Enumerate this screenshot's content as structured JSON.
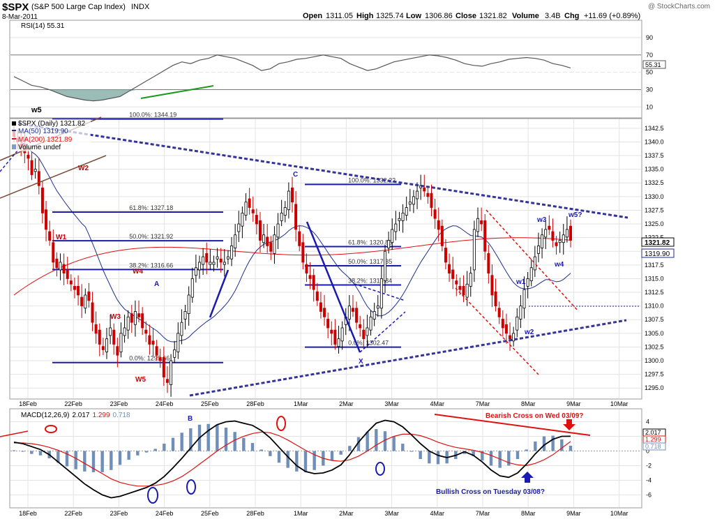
{
  "header": {
    "symbol": "$SPX",
    "name": "(S&P 500 Large Cap Index)",
    "exchange": "INDX",
    "date": "8-Mar-2011",
    "watermark": "@ StockCharts.com",
    "open_label": "Open",
    "open": "1311.05",
    "high_label": "High",
    "high": "1325.74",
    "low_label": "Low",
    "low": "1306.86",
    "close_label": "Close",
    "close": "1321.82",
    "volume_label": "Volume",
    "volume": "3.4B",
    "chg_label": "Chg",
    "chg": "+11.69 (+0.89%)"
  },
  "colors": {
    "price": "#000000",
    "up": "#000000",
    "down": "#cc0000",
    "ma50": "#1c2f8a",
    "ma200": "#e01010",
    "volume": "#7f9fc9",
    "wave_blue": "#1a1ab0",
    "wave_red": "#cc0000",
    "trendline": "#333399",
    "rsi": "#555555",
    "rsi_fill": "#7aa7a0",
    "macd": "#000000",
    "signal": "#e01010",
    "hist": "#6f8fb9",
    "grid": "#e3e3e3"
  },
  "chart_data": {
    "type": "candlestick",
    "x_labels": [
      "18Feb",
      "22Feb",
      "23Feb",
      "24Feb",
      "25Feb",
      "28Feb",
      "1Mar",
      "2Mar",
      "3Mar",
      "4Mar",
      "7Mar",
      "8Mar",
      "9Mar",
      "10Mar"
    ],
    "price_axis": {
      "ylim": [
        1293.5,
        1343.5
      ],
      "ticks": [
        "1342.5",
        "1340.0",
        "1337.5",
        "1335.0",
        "1332.5",
        "1330.0",
        "1327.5",
        "1325.0",
        "1322.5",
        "1320.0",
        "1317.5",
        "1315.0",
        "1312.5",
        "1310.0",
        "1307.5",
        "1305.0",
        "1302.5",
        "1300.0",
        "1297.5",
        "1295.0"
      ],
      "last_price_tag": "1321.82",
      "ma50_tag": "1319.90"
    },
    "legend": {
      "price": "$SPX (Daily) 1321.82",
      "ma50": "MA(50) 1319.90",
      "ma200": "MA(200) 1321.89",
      "volume": "Volume undef"
    },
    "candles_close": [
      1341,
      1340,
      1339,
      1338,
      1337,
      1334,
      1335,
      1332,
      1327,
      1324,
      1322,
      1318,
      1317,
      1318,
      1316,
      1315,
      1314,
      1313,
      1312,
      1310,
      1312,
      1311,
      1307,
      1305,
      1303,
      1302,
      1304,
      1306,
      1303,
      1301,
      1305,
      1306,
      1308,
      1307,
      1309,
      1308,
      1306,
      1305,
      1303,
      1303,
      1301,
      1300,
      1297,
      1296,
      1300,
      1302,
      1305,
      1307,
      1309,
      1312,
      1315,
      1317,
      1318,
      1319,
      1318,
      1318,
      1318,
      1319,
      1318,
      1318,
      1319,
      1321,
      1323,
      1325,
      1327,
      1329,
      1328,
      1327,
      1325,
      1322,
      1323,
      1321,
      1320,
      1323,
      1325,
      1327,
      1328,
      1331,
      1329,
      1324,
      1321,
      1318,
      1316,
      1315,
      1313,
      1311,
      1309,
      1308,
      1306,
      1305,
      1303,
      1304,
      1306,
      1308,
      1310,
      1309,
      1307,
      1306,
      1304,
      1306,
      1308,
      1309,
      1310,
      1315,
      1320,
      1322,
      1324,
      1325,
      1326,
      1327,
      1328,
      1329,
      1330,
      1331,
      1332,
      1331,
      1330,
      1328,
      1326,
      1324,
      1321,
      1318,
      1316,
      1315,
      1314,
      1313,
      1312,
      1314,
      1316,
      1324,
      1326,
      1325,
      1320,
      1316,
      1312,
      1310,
      1308,
      1306,
      1305,
      1304,
      1305,
      1308,
      1310,
      1313,
      1315,
      1317,
      1319,
      1321,
      1323,
      1324,
      1324,
      1322,
      1321,
      1322,
      1323,
      1324,
      1322
    ],
    "fib_left": [
      {
        "label": "100.0%: 1344.19",
        "value": 1344.19
      },
      {
        "label": "61.8%: 1327.18",
        "value": 1327.18
      },
      {
        "label": "50.0%: 1321.92",
        "value": 1321.92
      },
      {
        "label": "38.2%: 1316.66",
        "value": 1316.66
      },
      {
        "label": "0.0%: 1299.66",
        "value": 1299.66
      }
    ],
    "fib_right": [
      {
        "label": "100.0%: 1332.22",
        "value": 1332.22
      },
      {
        "label": "61.8%: 1320.86",
        "value": 1320.86
      },
      {
        "label": "50.0%: 1317.35",
        "value": 1317.35
      },
      {
        "label": "38.2%: 1313.84",
        "value": 1313.84
      },
      {
        "label": "0.0%: 1302.47",
        "value": 1302.47
      }
    ],
    "wave_labels": [
      {
        "text": "w5",
        "color": "black"
      },
      {
        "text": "W2",
        "color": "red"
      },
      {
        "text": "W1",
        "color": "red"
      },
      {
        "text": "W4",
        "color": "red"
      },
      {
        "text": "W3",
        "color": "red"
      },
      {
        "text": "W5",
        "color": "red"
      },
      {
        "text": "A",
        "color": "blue"
      },
      {
        "text": "B",
        "color": "blue"
      },
      {
        "text": "C",
        "color": "blue"
      },
      {
        "text": "X",
        "color": "blue"
      },
      {
        "text": "w1",
        "color": "blue"
      },
      {
        "text": "w2",
        "color": "blue"
      },
      {
        "text": "w3",
        "color": "blue"
      },
      {
        "text": "w4",
        "color": "blue"
      },
      {
        "text": "w5?",
        "color": "blue"
      }
    ],
    "rsi": {
      "label": "RSI(14) 55.31",
      "ticks": [
        "90",
        "70",
        "50",
        "30",
        "10"
      ],
      "last": "55.31",
      "values": [
        45,
        40,
        35,
        33,
        30,
        26,
        22,
        20,
        18,
        17,
        18,
        20,
        22,
        28,
        34,
        40,
        46,
        52,
        58,
        62,
        60,
        64,
        66,
        70,
        68,
        66,
        62,
        58,
        52,
        54,
        60,
        62,
        65,
        66,
        68,
        70,
        68,
        66,
        60,
        56,
        52,
        54,
        58,
        62,
        64,
        66,
        68,
        70,
        69,
        67,
        64,
        60,
        58,
        57,
        60,
        62,
        65,
        66,
        67,
        66,
        64,
        60,
        58,
        55
      ]
    },
    "macd": {
      "label": "MACD(12,26,9)",
      "macd_value": "2.017",
      "signal_value": "1.299",
      "hist_value": "0.718",
      "ticks": [
        "4",
        "2",
        "0",
        "-2",
        "-4",
        "-6"
      ],
      "macd": [
        1.2,
        1.0,
        0.6,
        0.2,
        -0.5,
        -1.5,
        -2.5,
        -3.5,
        -4.5,
        -5.3,
        -6.0,
        -6.4,
        -6.2,
        -5.8,
        -5.4,
        -5.0,
        -4.4,
        -3.5,
        -2.3,
        -1.0,
        0.4,
        1.8,
        2.8,
        3.6,
        4.0,
        4.1,
        3.8,
        3.5,
        2.8,
        1.8,
        0.5,
        -0.8,
        -2.0,
        -2.8,
        -3.1,
        -3.0,
        -2.6,
        -1.9,
        -0.5,
        1.2,
        2.6,
        3.8,
        4.2,
        4.0,
        3.3,
        2.2,
        1.0,
        0.0,
        -0.6,
        -0.9,
        -0.6,
        -0.1,
        -0.6,
        -1.5,
        -2.6,
        -3.4,
        -3.6,
        -3.0,
        -1.8,
        -0.4,
        0.8,
        1.6,
        2.0,
        2.017
      ],
      "signal": [
        1.1,
        1.1,
        1.0,
        0.8,
        0.5,
        0.1,
        -0.4,
        -1.0,
        -1.7,
        -2.4,
        -3.1,
        -3.8,
        -4.3,
        -4.6,
        -4.8,
        -4.8,
        -4.7,
        -4.5,
        -4.1,
        -3.5,
        -2.7,
        -1.8,
        -0.9,
        0.0,
        0.8,
        1.5,
        2.0,
        2.4,
        2.6,
        2.5,
        2.1,
        1.5,
        0.8,
        0.1,
        -0.5,
        -1.0,
        -1.3,
        -1.4,
        -1.2,
        -0.7,
        0.0,
        0.8,
        1.5,
        2.0,
        2.3,
        2.3,
        2.1,
        1.7,
        1.2,
        0.8,
        0.5,
        0.3,
        0.1,
        -0.2,
        -0.6,
        -1.1,
        -1.6,
        -1.9,
        -2.0,
        -1.7,
        -1.2,
        -0.5,
        0.4,
        1.299
      ]
    },
    "annotations": {
      "bearish": "Bearish Cross on Wed 03/09?",
      "bullish": "Bullish Cross on Tuesday 03/08?"
    }
  }
}
